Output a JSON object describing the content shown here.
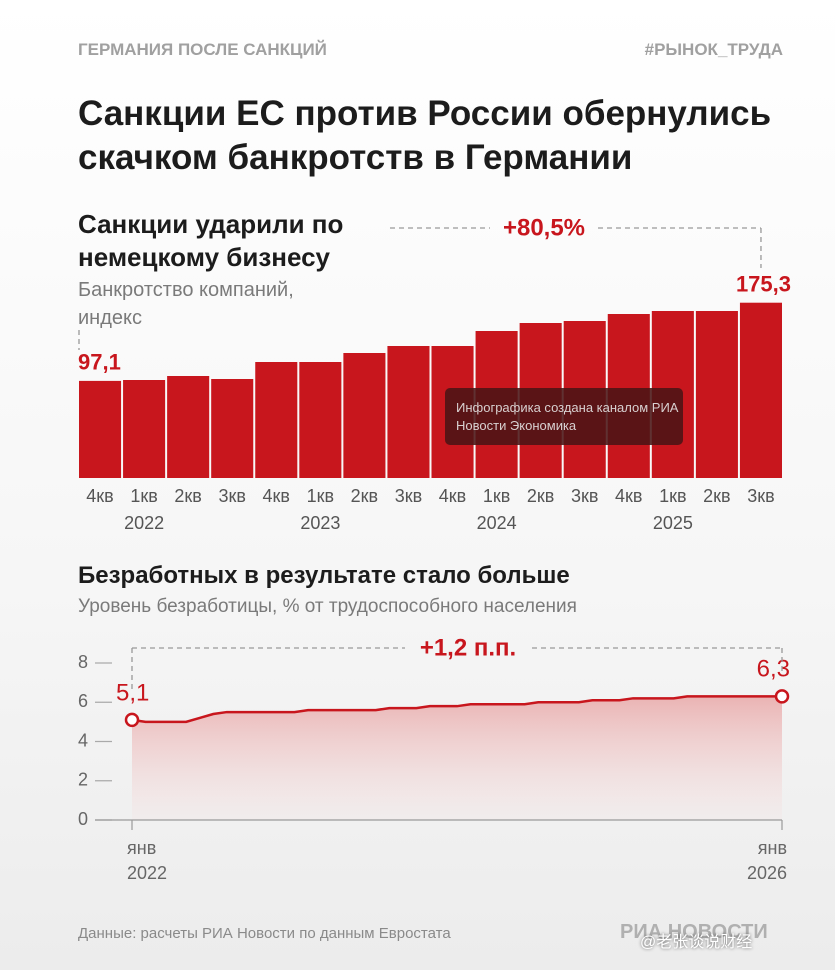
{
  "header": {
    "section": "ГЕРМАНИЯ ПОСЛЕ САНКЦИЙ",
    "tag": "#РЫНОК_ТРУДА",
    "title": "Санкции ЕС против России обернулись скачком банкротств в Германии"
  },
  "chart_data": [
    {
      "type": "bar",
      "title": "Санкции ударили по немецкому бизнесу",
      "subtitle": "Банкротство компаний, индекс",
      "categories": [
        "4кв",
        "1кв",
        "2кв",
        "3кв",
        "4кв",
        "1кв",
        "2кв",
        "3кв",
        "4кв",
        "1кв",
        "2кв",
        "3кв",
        "4кв",
        "1кв",
        "2кв",
        "3кв"
      ],
      "year_labels": [
        null,
        "2022",
        null,
        null,
        null,
        "2023",
        null,
        null,
        null,
        "2024",
        null,
        null,
        null,
        "2025",
        null,
        null
      ],
      "values": [
        97.1,
        98,
        102,
        99,
        116,
        116,
        125,
        132,
        132,
        147,
        155,
        157,
        164,
        167,
        167,
        175.3
      ],
      "value_labels": [
        "97,1",
        null,
        null,
        null,
        null,
        null,
        null,
        null,
        null,
        null,
        null,
        null,
        null,
        null,
        null,
        "175,3"
      ],
      "color": "#c8161d",
      "annotation": "+80,5%",
      "watermark": "Инфографика создана каналом РИА Новости Экономика"
    },
    {
      "type": "line",
      "title": "Безработных в результате стало больше",
      "subtitle": "Уровень безработицы, % от трудоспособного населения",
      "categories": [
        "янв\n2022",
        null,
        null,
        null,
        null,
        null,
        null,
        null,
        null,
        null,
        null,
        null,
        null,
        null,
        null,
        null,
        null,
        null,
        null,
        null,
        null,
        null,
        null,
        null,
        null,
        null,
        null,
        null,
        null,
        null,
        null,
        null,
        null,
        null,
        null,
        null,
        null,
        null,
        null,
        null,
        null,
        null,
        null,
        null,
        null,
        null,
        null,
        null,
        "янв\n2026"
      ],
      "values": [
        5.1,
        5.0,
        5.0,
        5.0,
        5.0,
        5.2,
        5.4,
        5.5,
        5.5,
        5.5,
        5.5,
        5.5,
        5.5,
        5.6,
        5.6,
        5.6,
        5.6,
        5.6,
        5.6,
        5.7,
        5.7,
        5.7,
        5.8,
        5.8,
        5.8,
        5.9,
        5.9,
        5.9,
        5.9,
        5.9,
        6.0,
        6.0,
        6.0,
        6.0,
        6.1,
        6.1,
        6.1,
        6.2,
        6.2,
        6.2,
        6.2,
        6.3,
        6.3,
        6.3,
        6.3,
        6.3,
        6.3,
        6.3,
        6.3
      ],
      "value_labels": [
        "5,1",
        null,
        null,
        null,
        null,
        null,
        null,
        null,
        null,
        null,
        null,
        null,
        null,
        null,
        null,
        null,
        null,
        null,
        null,
        null,
        null,
        null,
        null,
        null,
        null,
        null,
        null,
        null,
        null,
        null,
        null,
        null,
        null,
        null,
        null,
        null,
        null,
        null,
        null,
        null,
        null,
        null,
        null,
        null,
        null,
        null,
        null,
        null,
        "6,3"
      ],
      "ylim": [
        0,
        8
      ],
      "yticks": [
        0,
        2,
        4,
        6,
        8
      ],
      "color": "#c8161d",
      "annotation": "+1,2 п.п."
    }
  ],
  "footer": {
    "source": "Данные: расчеты РИА Новости по данным Евростата",
    "logo": "РИА НОВОСТИ",
    "watermark": "@老张谈说财经"
  }
}
